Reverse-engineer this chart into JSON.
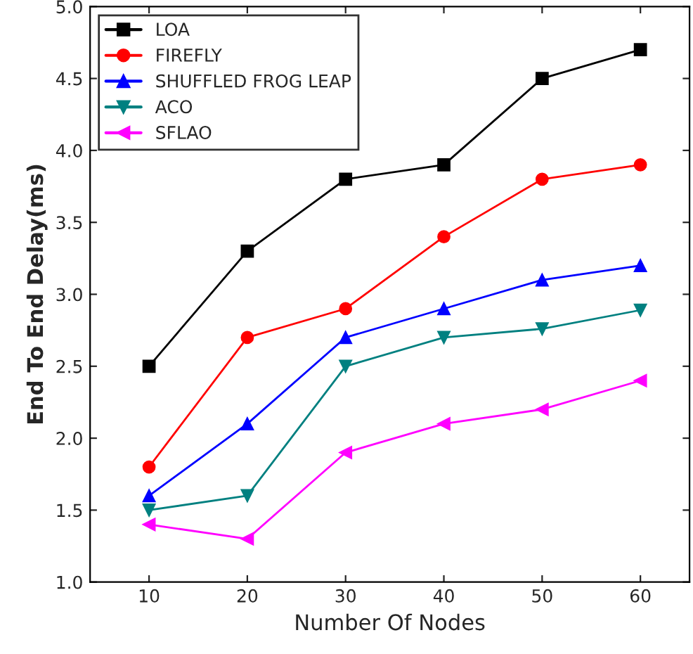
{
  "chart_data": {
    "type": "line",
    "xlabel": "Number Of Nodes",
    "ylabel": "End To End Delay(ms)",
    "x": [
      10,
      20,
      30,
      40,
      50,
      60
    ],
    "series": [
      {
        "name": "LOA",
        "color": "#000000",
        "marker": "square",
        "values": [
          2.5,
          3.3,
          3.8,
          3.9,
          4.5,
          4.7
        ]
      },
      {
        "name": "FIREFLY",
        "color": "#ff0000",
        "marker": "circle",
        "values": [
          1.8,
          2.7,
          2.9,
          3.4,
          3.8,
          3.9
        ]
      },
      {
        "name": "SHUFFLED FROG LEAP",
        "color": "#0000ff",
        "marker": "triangle",
        "values": [
          1.6,
          2.1,
          2.7,
          2.9,
          3.1,
          3.2
        ]
      },
      {
        "name": "ACO",
        "color": "#008080",
        "marker": "triangle_down",
        "values": [
          1.5,
          1.6,
          2.5,
          2.7,
          2.76,
          2.89
        ]
      },
      {
        "name": "SFLAO",
        "color": "#ff00ff",
        "marker": "triangle_left",
        "values": [
          1.4,
          1.3,
          1.9,
          2.1,
          2.2,
          2.4
        ]
      }
    ],
    "xlim": [
      4,
      65
    ],
    "xticks": [
      10,
      20,
      30,
      40,
      50,
      60
    ],
    "ylim": [
      1.0,
      5.0
    ],
    "yticks": [
      {
        "value": 1.0,
        "label": "1.0"
      },
      {
        "value": 1.5,
        "label": "1.5"
      },
      {
        "value": 2.0,
        "label": "2.0"
      },
      {
        "value": 2.5,
        "label": "2.5"
      },
      {
        "value": 3.0,
        "label": "3.0"
      },
      {
        "value": 3.5,
        "label": "3.5"
      },
      {
        "value": 4.0,
        "label": "4.0"
      },
      {
        "value": 4.5,
        "label": "4.5"
      },
      {
        "value": 5.0,
        "label": "5.0"
      }
    ],
    "grid": false,
    "legend": "top left",
    "line_style": "solid"
  }
}
